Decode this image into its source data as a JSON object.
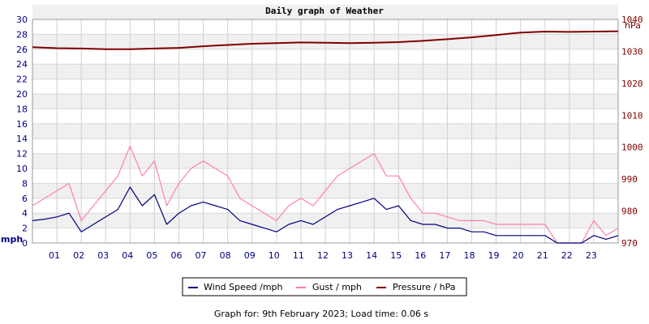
{
  "chart_data": {
    "type": "line",
    "title": "Daily graph of Weather",
    "left_axis": {
      "label": "mph",
      "min": 0,
      "max": 30,
      "step": 2,
      "color": "#000080"
    },
    "right_axis": {
      "label": "hPa",
      "min": 970,
      "max": 1040,
      "step": 10,
      "color": "#800000"
    },
    "x_axis": {
      "ticks": [
        "01",
        "02",
        "03",
        "04",
        "05",
        "06",
        "07",
        "08",
        "09",
        "10",
        "11",
        "12",
        "13",
        "14",
        "15",
        "16",
        "17",
        "18",
        "19",
        "20",
        "21",
        "22",
        "23"
      ],
      "min": 0,
      "max": 24
    },
    "grid": true,
    "legend_position": "bottom-center",
    "series": [
      {
        "name": "Wind Speed /mph",
        "axis": "left",
        "color": "#000080",
        "hours": [
          0,
          0.5,
          1,
          1.5,
          2,
          2.5,
          3,
          3.5,
          4,
          4.5,
          5,
          5.5,
          6,
          6.5,
          7,
          7.5,
          8,
          8.5,
          9,
          9.5,
          10,
          10.5,
          11,
          11.5,
          12,
          12.5,
          13,
          13.5,
          14,
          14.5,
          15,
          15.5,
          16,
          16.5,
          17,
          17.5,
          18,
          18.5,
          19,
          19.5,
          20,
          20.5,
          21,
          21.5,
          22,
          22.5,
          23,
          23.5,
          24
        ],
        "values": [
          3,
          3.2,
          3.5,
          4,
          1.5,
          2.5,
          3.5,
          4.5,
          7.5,
          5,
          6.5,
          2.5,
          4,
          5,
          5.5,
          5,
          4.5,
          3,
          2.5,
          2,
          1.5,
          2.5,
          3,
          2.5,
          3.5,
          4.5,
          5,
          5.5,
          6,
          4.5,
          5,
          3,
          2.5,
          2.5,
          2,
          2,
          1.5,
          1.5,
          1,
          1,
          1,
          1,
          1,
          0,
          0,
          0,
          1,
          0.5,
          1
        ]
      },
      {
        "name": "Gust / mph",
        "axis": "left",
        "color": "#ff80aa",
        "hours": [
          0,
          0.5,
          1,
          1.5,
          2,
          2.5,
          3,
          3.5,
          4,
          4.5,
          5,
          5.5,
          6,
          6.5,
          7,
          7.5,
          8,
          8.5,
          9,
          9.5,
          10,
          10.5,
          11,
          11.5,
          12,
          12.5,
          13,
          13.5,
          14,
          14.5,
          15,
          15.5,
          16,
          16.5,
          17,
          17.5,
          18,
          18.5,
          19,
          19.5,
          20,
          20.5,
          21,
          21.5,
          22,
          22.5,
          23,
          23.5,
          24
        ],
        "values": [
          5,
          6,
          7,
          8,
          3,
          5,
          7,
          9,
          13,
          9,
          11,
          5,
          8,
          10,
          11,
          10,
          9,
          6,
          5,
          4,
          3,
          5,
          6,
          5,
          7,
          9,
          10,
          11,
          12,
          9,
          9,
          6,
          4,
          4,
          3.5,
          3,
          3,
          3,
          2.5,
          2.5,
          2.5,
          2.5,
          2.5,
          0,
          0,
          0,
          3,
          1,
          2
        ]
      },
      {
        "name": "Pressure / hPa",
        "axis": "right",
        "color": "#800000",
        "hours": [
          0,
          1,
          2,
          3,
          4,
          5,
          6,
          7,
          8,
          9,
          10,
          11,
          12,
          13,
          14,
          15,
          16,
          17,
          18,
          19,
          20,
          21,
          22,
          23,
          24
        ],
        "values": [
          1031.3,
          1031,
          1030.9,
          1030.7,
          1030.7,
          1030.9,
          1031.1,
          1031.6,
          1032,
          1032.4,
          1032.6,
          1032.8,
          1032.7,
          1032.6,
          1032.7,
          1032.9,
          1033.3,
          1033.8,
          1034.4,
          1035.1,
          1035.9,
          1036.2,
          1036.1,
          1036.2,
          1036.3
        ]
      }
    ]
  },
  "footer": "Graph for: 9th February 2023; Load time: 0.06 s"
}
